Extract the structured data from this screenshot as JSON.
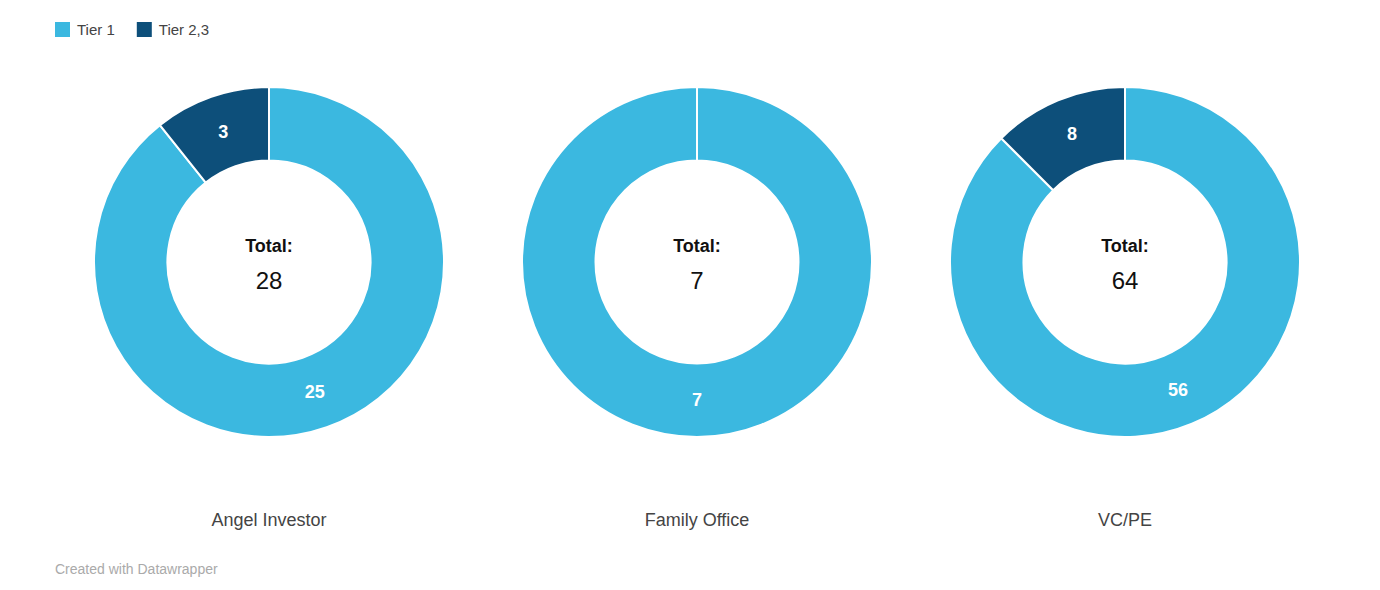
{
  "chart_data": {
    "type": "donut",
    "categories": [
      "Angel Investor",
      "Family Office",
      "VC/PE"
    ],
    "series": [
      {
        "name": "Tier 1",
        "color": "#3BB8E0",
        "values": [
          25,
          7,
          56
        ]
      },
      {
        "name": "Tier 2,3",
        "color": "#0D4F7A",
        "values": [
          3,
          0,
          8
        ]
      }
    ],
    "totals": [
      28,
      7,
      64
    ],
    "center_label": "Total:",
    "data_labels": true,
    "legend": "upper left",
    "annotations": [
      "Created with Datawrapper"
    ]
  }
}
